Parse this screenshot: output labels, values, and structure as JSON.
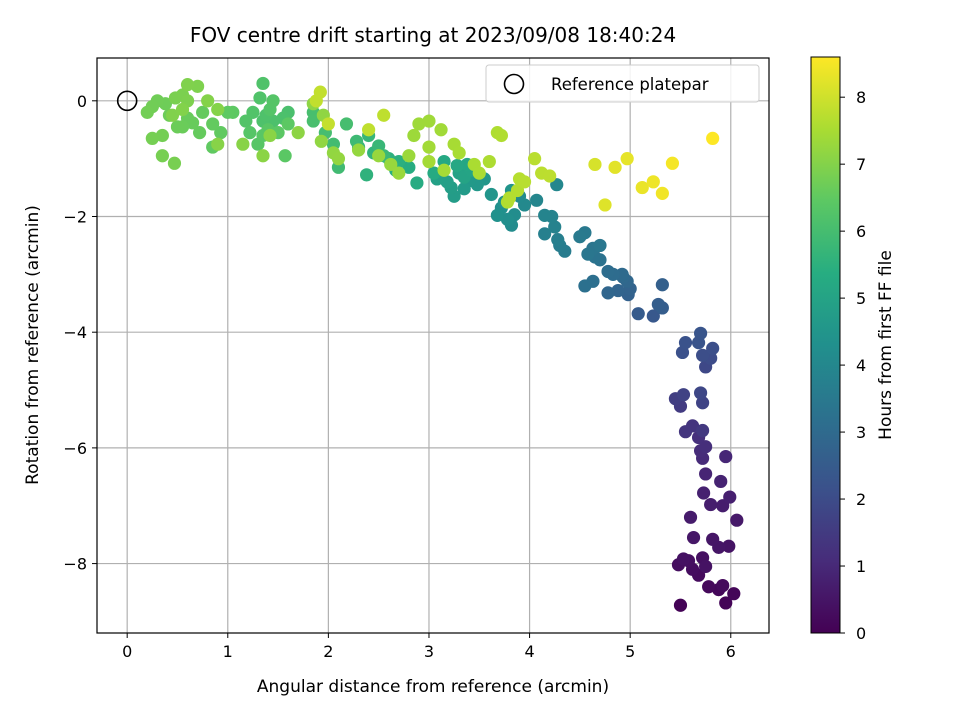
{
  "chart_data": {
    "type": "scatter",
    "title": "FOV centre drift starting at 2023/09/08 18:40:24",
    "xlabel": "Angular distance from reference (arcmin)",
    "ylabel": "Rotation from reference (arcmin)",
    "xlim": [
      -0.3,
      6.38
    ],
    "ylim": [
      -9.2,
      0.74
    ],
    "xticks": [
      0,
      1,
      2,
      3,
      4,
      5,
      6
    ],
    "yticks": [
      -8,
      -6,
      -4,
      -2,
      0
    ],
    "grid": true,
    "legend": {
      "label": "Reference platepar",
      "placement": "top-right"
    },
    "reference_point": {
      "x": 0,
      "y": 0
    },
    "colorbar": {
      "label": "Hours from first FF file",
      "colormap": "viridis",
      "range": [
        0,
        8.6
      ],
      "ticks": [
        0,
        1,
        2,
        3,
        4,
        5,
        6,
        7,
        8
      ]
    },
    "points": [
      [
        5.5,
        -8.72,
        0.05
      ],
      [
        5.95,
        -8.68,
        0.08
      ],
      [
        6.03,
        -8.52,
        0.12
      ],
      [
        5.88,
        -8.45,
        0.15
      ],
      [
        5.78,
        -8.4,
        0.2
      ],
      [
        5.92,
        -8.38,
        0.22
      ],
      [
        5.68,
        -8.2,
        0.25
      ],
      [
        5.62,
        -8.1,
        0.3
      ],
      [
        5.48,
        -8.02,
        0.32
      ],
      [
        5.58,
        -7.95,
        0.35
      ],
      [
        5.72,
        -7.9,
        0.38
      ],
      [
        5.53,
        -7.92,
        0.4
      ],
      [
        5.75,
        -8.05,
        0.42
      ],
      [
        5.98,
        -7.7,
        0.45
      ],
      [
        5.88,
        -7.72,
        0.5
      ],
      [
        5.82,
        -7.58,
        0.52
      ],
      [
        5.63,
        -7.55,
        0.55
      ],
      [
        6.06,
        -7.25,
        0.6
      ],
      [
        5.6,
        -7.2,
        0.65
      ],
      [
        5.92,
        -7.0,
        0.7
      ],
      [
        5.8,
        -6.98,
        0.72
      ],
      [
        5.99,
        -6.85,
        0.75
      ],
      [
        5.73,
        -6.78,
        0.8
      ],
      [
        5.9,
        -6.58,
        0.85
      ],
      [
        5.75,
        -6.45,
        0.9
      ],
      [
        5.95,
        -6.15,
        0.95
      ],
      [
        5.72,
        -6.18,
        1.05
      ],
      [
        5.7,
        -6.05,
        1.1
      ],
      [
        5.75,
        -5.98,
        1.15
      ],
      [
        5.68,
        -5.82,
        1.2
      ],
      [
        5.62,
        -5.62,
        1.3
      ],
      [
        5.55,
        -5.72,
        1.35
      ],
      [
        5.72,
        -5.7,
        1.45
      ],
      [
        5.5,
        -5.28,
        1.5
      ],
      [
        5.45,
        -5.15,
        1.6
      ],
      [
        5.53,
        -5.08,
        1.7
      ],
      [
        5.72,
        -5.22,
        1.75
      ],
      [
        5.7,
        -5.05,
        1.85
      ],
      [
        5.75,
        -4.6,
        1.9
      ],
      [
        5.8,
        -4.45,
        2.0
      ],
      [
        5.72,
        -4.4,
        2.05
      ],
      [
        5.82,
        -4.28,
        2.1
      ],
      [
        5.52,
        -4.35,
        2.15
      ],
      [
        5.55,
        -4.18,
        2.2
      ],
      [
        5.68,
        -4.18,
        2.25
      ],
      [
        5.7,
        -4.02,
        2.3
      ],
      [
        5.23,
        -3.72,
        2.4
      ],
      [
        5.08,
        -3.68,
        2.5
      ],
      [
        5.32,
        -3.58,
        2.55
      ],
      [
        5.28,
        -3.52,
        2.6
      ],
      [
        5.32,
        -3.18,
        2.65
      ],
      [
        4.98,
        -3.35,
        2.7
      ],
      [
        5.0,
        -3.25,
        2.75
      ],
      [
        4.88,
        -3.28,
        2.8
      ],
      [
        4.78,
        -3.32,
        2.85
      ],
      [
        4.97,
        -3.12,
        2.9
      ],
      [
        4.93,
        -3.05,
        2.95
      ],
      [
        4.92,
        -3.0,
        3.0
      ],
      [
        4.83,
        -3.0,
        3.05
      ],
      [
        4.78,
        -2.95,
        3.1
      ],
      [
        4.63,
        -3.12,
        3.15
      ],
      [
        4.55,
        -3.2,
        3.2
      ],
      [
        4.7,
        -2.75,
        3.25
      ],
      [
        4.65,
        -2.7,
        3.3
      ],
      [
        4.63,
        -2.55,
        3.35
      ],
      [
        4.58,
        -2.65,
        3.4
      ],
      [
        4.7,
        -2.5,
        3.45
      ],
      [
        4.55,
        -2.28,
        3.5
      ],
      [
        4.5,
        -2.35,
        3.55
      ],
      [
        4.35,
        -2.6,
        3.6
      ],
      [
        4.3,
        -2.5,
        3.65
      ],
      [
        4.28,
        -2.4,
        3.7
      ],
      [
        4.15,
        -2.3,
        3.75
      ],
      [
        4.25,
        -2.18,
        3.8
      ],
      [
        4.22,
        -2.0,
        3.85
      ],
      [
        4.15,
        -1.98,
        3.9
      ],
      [
        4.07,
        -1.72,
        3.95
      ],
      [
        4.27,
        -1.45,
        4.0
      ],
      [
        3.95,
        -1.8,
        4.05
      ],
      [
        3.9,
        -1.65,
        4.1
      ],
      [
        3.82,
        -2.15,
        4.15
      ],
      [
        3.85,
        -1.97,
        4.2
      ],
      [
        3.78,
        -2.05,
        4.25
      ],
      [
        3.72,
        -1.85,
        4.3
      ],
      [
        3.68,
        -1.98,
        4.35
      ],
      [
        3.75,
        -1.75,
        4.4
      ],
      [
        3.82,
        -1.55,
        4.45
      ],
      [
        3.62,
        -1.62,
        4.5
      ],
      [
        3.55,
        -1.35,
        4.55
      ],
      [
        3.48,
        -1.45,
        4.6
      ],
      [
        3.4,
        -1.38,
        4.65
      ],
      [
        3.35,
        -1.52,
        4.7
      ],
      [
        3.25,
        -1.65,
        4.75
      ],
      [
        3.22,
        -1.5,
        4.8
      ],
      [
        3.18,
        -1.4,
        4.85
      ],
      [
        3.08,
        -1.35,
        4.9
      ],
      [
        3.3,
        -1.25,
        4.95
      ],
      [
        3.35,
        -1.32,
        5.0
      ],
      [
        3.42,
        -1.2,
        5.05
      ],
      [
        3.38,
        -1.1,
        5.1
      ],
      [
        3.28,
        -1.12,
        5.15
      ],
      [
        3.15,
        -1.05,
        5.2
      ],
      [
        3.05,
        -1.25,
        5.25
      ],
      [
        2.88,
        -1.42,
        5.3
      ],
      [
        2.8,
        -1.15,
        5.35
      ],
      [
        2.67,
        -1.2,
        5.4
      ],
      [
        2.7,
        -1.05,
        5.45
      ],
      [
        2.6,
        -1.0,
        5.5
      ],
      [
        2.38,
        -1.28,
        5.55
      ],
      [
        2.45,
        -0.9,
        5.6
      ],
      [
        2.3,
        -0.8,
        5.65
      ],
      [
        2.4,
        -0.6,
        5.7
      ],
      [
        2.5,
        -0.78,
        5.75
      ],
      [
        2.55,
        -0.95,
        5.8
      ],
      [
        2.28,
        -0.7,
        5.85
      ],
      [
        2.1,
        -1.15,
        5.9
      ],
      [
        2.05,
        -0.75,
        5.95
      ],
      [
        1.97,
        -0.55,
        6.0
      ],
      [
        2.18,
        -0.4,
        6.02
      ],
      [
        1.85,
        -0.2,
        6.05
      ],
      [
        1.85,
        -0.35,
        6.07
      ],
      [
        1.6,
        -0.2,
        6.1
      ],
      [
        1.55,
        -0.3,
        6.12
      ],
      [
        1.45,
        -0.35,
        6.14
      ],
      [
        1.35,
        -0.35,
        6.16
      ],
      [
        1.38,
        -0.25,
        6.18
      ],
      [
        1.35,
        0.3,
        6.2
      ],
      [
        1.32,
        0.05,
        6.22
      ],
      [
        1.25,
        -0.2,
        6.24
      ],
      [
        1.18,
        -0.35,
        6.26
      ],
      [
        1.42,
        -0.15,
        6.28
      ],
      [
        1.45,
        0.0,
        6.3
      ],
      [
        1.22,
        -0.55,
        6.32
      ],
      [
        1.3,
        -0.75,
        6.34
      ],
      [
        1.35,
        -0.6,
        6.36
      ],
      [
        1.4,
        -0.5,
        6.38
      ],
      [
        1.57,
        -0.95,
        6.4
      ],
      [
        1.5,
        -0.55,
        6.42
      ],
      [
        1.6,
        -0.4,
        6.44
      ],
      [
        1.05,
        -0.2,
        6.46
      ],
      [
        1.0,
        -0.2,
        6.48
      ],
      [
        0.85,
        -0.8,
        6.5
      ],
      [
        0.93,
        -0.55,
        6.52
      ],
      [
        0.85,
        -0.4,
        6.54
      ],
      [
        0.75,
        -0.2,
        6.56
      ],
      [
        0.72,
        -0.55,
        6.58
      ],
      [
        0.65,
        -0.38,
        6.6
      ],
      [
        0.6,
        -0.3,
        6.62
      ],
      [
        0.55,
        -0.45,
        6.64
      ],
      [
        0.5,
        -0.45,
        6.66
      ],
      [
        0.42,
        -0.25,
        6.68
      ],
      [
        0.38,
        -0.05,
        6.7
      ],
      [
        0.3,
        0.0,
        6.72
      ],
      [
        0.25,
        -0.1,
        6.74
      ],
      [
        0.2,
        -0.2,
        6.76
      ],
      [
        0.35,
        -0.6,
        6.78
      ],
      [
        0.25,
        -0.65,
        6.8
      ],
      [
        0.35,
        -0.95,
        6.82
      ],
      [
        0.47,
        -1.08,
        6.84
      ],
      [
        0.48,
        0.05,
        6.86
      ],
      [
        0.55,
        0.1,
        6.88
      ],
      [
        0.6,
        0.0,
        6.9
      ],
      [
        0.7,
        0.25,
        6.92
      ],
      [
        0.6,
        0.28,
        6.94
      ],
      [
        0.45,
        -0.25,
        6.96
      ],
      [
        0.55,
        -0.15,
        6.98
      ],
      [
        0.8,
        0.0,
        7.0
      ],
      [
        0.9,
        -0.15,
        7.02
      ],
      [
        0.9,
        -0.75,
        7.04
      ],
      [
        1.15,
        -0.75,
        7.06
      ],
      [
        1.42,
        -0.6,
        7.08
      ],
      [
        1.35,
        -0.95,
        7.1
      ],
      [
        1.7,
        -0.55,
        7.12
      ],
      [
        1.85,
        -0.05,
        7.14
      ],
      [
        1.95,
        -0.25,
        7.16
      ],
      [
        1.93,
        -0.7,
        7.18
      ],
      [
        2.05,
        -0.9,
        7.2
      ],
      [
        2.1,
        -1.0,
        7.22
      ],
      [
        2.3,
        -0.85,
        7.24
      ],
      [
        2.5,
        -0.95,
        7.26
      ],
      [
        2.62,
        -1.1,
        7.28
      ],
      [
        2.7,
        -1.25,
        7.3
      ],
      [
        2.8,
        -0.95,
        7.32
      ],
      [
        2.85,
        -0.6,
        7.34
      ],
      [
        2.9,
        -0.4,
        7.36
      ],
      [
        3.0,
        -0.35,
        7.38
      ],
      [
        3.12,
        -0.5,
        7.4
      ],
      [
        3.0,
        -0.8,
        7.42
      ],
      [
        3.0,
        -1.05,
        7.44
      ],
      [
        3.15,
        -1.2,
        7.46
      ],
      [
        3.25,
        -0.75,
        7.48
      ],
      [
        3.3,
        -0.9,
        7.5
      ],
      [
        3.45,
        -1.1,
        7.52
      ],
      [
        3.5,
        -1.25,
        7.54
      ],
      [
        3.6,
        -1.05,
        7.56
      ],
      [
        3.68,
        -0.55,
        7.58
      ],
      [
        3.72,
        -0.6,
        7.6
      ],
      [
        3.78,
        -1.75,
        7.62
      ],
      [
        3.8,
        -1.68,
        7.64
      ],
      [
        3.88,
        -1.55,
        7.66
      ],
      [
        3.9,
        -1.35,
        7.68
      ],
      [
        3.95,
        -1.4,
        7.7
      ],
      [
        4.05,
        -1.0,
        7.72
      ],
      [
        4.12,
        -1.25,
        7.74
      ],
      [
        4.2,
        -1.3,
        7.76
      ],
      [
        2.55,
        -0.25,
        7.78
      ],
      [
        2.4,
        -0.5,
        7.8
      ],
      [
        1.88,
        0.0,
        7.82
      ],
      [
        1.92,
        0.15,
        7.84
      ],
      [
        2.0,
        -0.4,
        7.86
      ],
      [
        4.65,
        -1.1,
        8.1
      ],
      [
        4.75,
        -1.8,
        8.2
      ],
      [
        4.85,
        -1.15,
        8.25
      ],
      [
        4.97,
        -1.0,
        8.3
      ],
      [
        5.12,
        -1.5,
        8.35
      ],
      [
        5.23,
        -1.4,
        8.4
      ],
      [
        5.32,
        -1.6,
        8.45
      ],
      [
        5.42,
        -1.08,
        8.5
      ],
      [
        5.82,
        -0.65,
        8.6
      ]
    ]
  }
}
